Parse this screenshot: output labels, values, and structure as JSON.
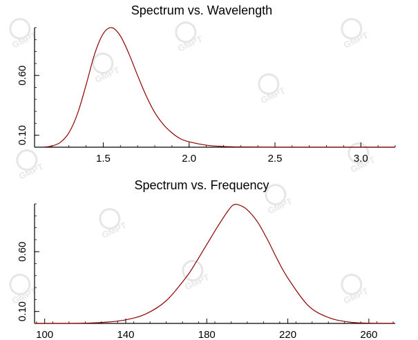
{
  "colors": {
    "curve": "#8b0000",
    "axis": "#000000",
    "watermark": "#e6e6e6"
  },
  "watermark_text": "GMPT",
  "chart_data": [
    {
      "type": "line",
      "title": "Spectrum vs. Wavelength",
      "xlabel": "",
      "ylabel": "",
      "xlim": [
        1.1,
        3.2
      ],
      "ylim": [
        0.0,
        1.0
      ],
      "xticks": [
        1.5,
        2.0,
        2.5,
        3.0
      ],
      "xtick_labels": [
        "1.5",
        "2.0",
        "2.5",
        "3.0"
      ],
      "yticks": [
        0.1,
        0.6
      ],
      "ytick_labels": [
        "0.10",
        "0.60"
      ],
      "grid": false,
      "series": [
        {
          "x": [
            1.15,
            1.2,
            1.25,
            1.3,
            1.35,
            1.4,
            1.45,
            1.5,
            1.55,
            1.6,
            1.65,
            1.7,
            1.75,
            1.8,
            1.85,
            1.9,
            1.95,
            2.0,
            2.1,
            2.2,
            2.3,
            2.5,
            2.8,
            3.2
          ],
          "y": [
            0.0,
            0.01,
            0.04,
            0.12,
            0.28,
            0.52,
            0.78,
            0.95,
            1.0,
            0.93,
            0.78,
            0.6,
            0.43,
            0.29,
            0.19,
            0.12,
            0.07,
            0.045,
            0.017,
            0.006,
            0.002,
            0.0,
            0.0,
            0.0
          ]
        }
      ]
    },
    {
      "type": "line",
      "title": "Spectrum vs. Frequency",
      "xlabel": "",
      "ylabel": "",
      "xlim": [
        95,
        273
      ],
      "ylim": [
        0.0,
        1.0
      ],
      "xticks": [
        100,
        140,
        180,
        220,
        260
      ],
      "xtick_labels": [
        "100",
        "140",
        "180",
        "220",
        "260"
      ],
      "yticks": [
        0.1,
        0.6
      ],
      "ytick_labels": [
        "0.10",
        "0.60"
      ],
      "grid": false,
      "series": [
        {
          "x": [
            95,
            110,
            120,
            130,
            140,
            150,
            160,
            170,
            175,
            180,
            185,
            190,
            193,
            196,
            200,
            205,
            210,
            215,
            220,
            230,
            240,
            250,
            260,
            273
          ],
          "y": [
            0.0,
            0.0,
            0.002,
            0.01,
            0.03,
            0.08,
            0.19,
            0.39,
            0.52,
            0.66,
            0.8,
            0.93,
            0.99,
            0.99,
            0.95,
            0.85,
            0.7,
            0.53,
            0.38,
            0.15,
            0.05,
            0.012,
            0.002,
            0.0
          ]
        }
      ]
    }
  ]
}
